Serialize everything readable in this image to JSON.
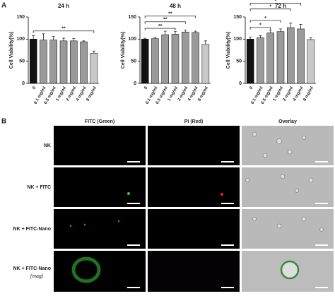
{
  "chart_data": [
    {
      "type": "bar",
      "title": "24 h",
      "ylabel": "Cell Viability(%)",
      "categories": [
        "0",
        "0.1 mg/ml",
        "0.5 mg/ml",
        "1 mg/ml",
        "2 mg/ml",
        "4 mg/ml",
        "8 mg/ml"
      ],
      "values": [
        100,
        98,
        98,
        96,
        96,
        94,
        68
      ],
      "errors": [
        8,
        14,
        8,
        6,
        5,
        2,
        5
      ],
      "colors": [
        "#111111",
        "#9a9a9a",
        "#9a9a9a",
        "#9a9a9a",
        "#9a9a9a",
        "#9a9a9a",
        "#c8c8c8"
      ],
      "ylim": [
        0,
        150
      ],
      "yticks": [
        0,
        50,
        100,
        150
      ],
      "annotations": [
        {
          "text": "**",
          "from": 0,
          "to": 6
        }
      ]
    },
    {
      "type": "bar",
      "title": "48 h",
      "ylabel": "Cell Viability(%)",
      "categories": [
        "0",
        "0.1 mg/ml",
        "0.5 mg/ml",
        "1 mg/ml",
        "2 mg/ml",
        "4 mg/ml",
        "8 mg/ml"
      ],
      "values": [
        100,
        101,
        110,
        111,
        116,
        115,
        88
      ],
      "errors": [
        2,
        3,
        8,
        6,
        4,
        3,
        8
      ],
      "colors": [
        "#111111",
        "#9a9a9a",
        "#9a9a9a",
        "#9a9a9a",
        "#9a9a9a",
        "#9a9a9a",
        "#c8c8c8"
      ],
      "ylim": [
        0,
        150
      ],
      "yticks": [
        0,
        50,
        100,
        150
      ],
      "annotations": [
        {
          "text": "**",
          "from": 0,
          "to": 3
        },
        {
          "text": "**",
          "from": 0,
          "to": 4
        },
        {
          "text": "**",
          "from": 0,
          "to": 5
        }
      ]
    },
    {
      "type": "bar",
      "title": "72 h",
      "ylabel": "Cell Viability(%)",
      "categories": [
        "0",
        "0.1 mg/ml",
        "0.5 mg/ml",
        "1 mg/ml",
        "2 mg/ml",
        "4 mg/ml",
        "8 mg/ml"
      ],
      "values": [
        100,
        103,
        114,
        117,
        126,
        123,
        99
      ],
      "errors": [
        4,
        5,
        6,
        6,
        10,
        10,
        4
      ],
      "colors": [
        "#111111",
        "#9a9a9a",
        "#9a9a9a",
        "#9a9a9a",
        "#9a9a9a",
        "#9a9a9a",
        "#c8c8c8"
      ],
      "ylim": [
        0,
        150
      ],
      "yticks": [
        0,
        50,
        100,
        150
      ],
      "annotations": [
        {
          "text": "*",
          "from": 0,
          "to": 2
        },
        {
          "text": "*",
          "from": 0,
          "to": 3
        },
        {
          "text": "*",
          "from": 0,
          "to": 4
        },
        {
          "text": "*",
          "from": 0,
          "to": 5
        }
      ]
    }
  ],
  "panel_a": "A",
  "panel_b": "B",
  "columns": [
    "FITC (Green)",
    "PI (Red)",
    "Overlay"
  ],
  "rows": [
    "NK",
    "NK + FITC",
    "NK + FITC-Nano",
    "NK + FITC-Nano"
  ],
  "row_note": "(mag)"
}
